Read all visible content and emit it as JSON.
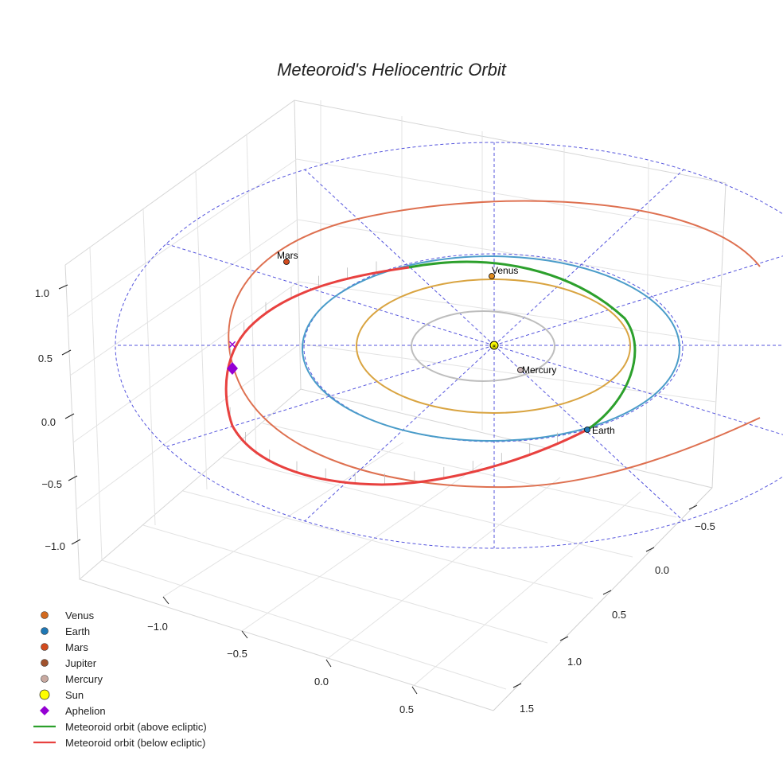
{
  "chart_data": {
    "type": "3d-orbit",
    "title": "Meteoroid's Heliocentric Orbit",
    "x_ticks": [
      "−1.0",
      "−0.5",
      "0.0",
      "0.5"
    ],
    "y_ticks": [
      "−0.5",
      "0.0",
      "0.5",
      "1.0",
      "1.5"
    ],
    "z_ticks": [
      "1.0",
      "0.5",
      "0.0",
      "−0.5",
      "−1.0"
    ],
    "bodies": [
      {
        "name": "Venus",
        "label": "Venus",
        "color": "#e08a1e"
      },
      {
        "name": "Earth",
        "label": "Earth",
        "color": "#1f77b4"
      },
      {
        "name": "Mars",
        "label": "Mars",
        "color": "#d24b1e"
      },
      {
        "name": "Mercury",
        "label": "Mercury",
        "color": "#c8b4b4"
      },
      {
        "name": "Sun",
        "label": "",
        "color": "#ffff00"
      }
    ],
    "orbit_colors": {
      "mercury": "#bdbdbd",
      "venus": "#d9a441",
      "earth": "#4a9cc9",
      "mars": "#de7050",
      "ecliptic_grid": "#5555dd",
      "meteoroid_above": "#2ca02c",
      "meteoroid_below": "#e8413f",
      "aphelion": "#9400d3"
    },
    "legend": [
      {
        "label": "Venus",
        "symbol": "circle",
        "color": "#d2691e"
      },
      {
        "label": "Earth",
        "symbol": "circle",
        "color": "#1f77b4"
      },
      {
        "label": "Mars",
        "symbol": "circle",
        "color": "#d24b1e"
      },
      {
        "label": "Jupiter",
        "symbol": "circle",
        "color": "#a0522d"
      },
      {
        "label": "Mercury",
        "symbol": "circle",
        "color": "#c8a9a0"
      },
      {
        "label": "Sun",
        "symbol": "circle-large",
        "color": "#ffff00"
      },
      {
        "label": "Aphelion",
        "symbol": "diamond",
        "color": "#9400d3"
      },
      {
        "label": "Meteoroid orbit (above ecliptic)",
        "symbol": "line",
        "color": "#2ca02c"
      },
      {
        "label": "Meteoroid orbit (below ecliptic)",
        "symbol": "line",
        "color": "#e8413f"
      }
    ]
  }
}
